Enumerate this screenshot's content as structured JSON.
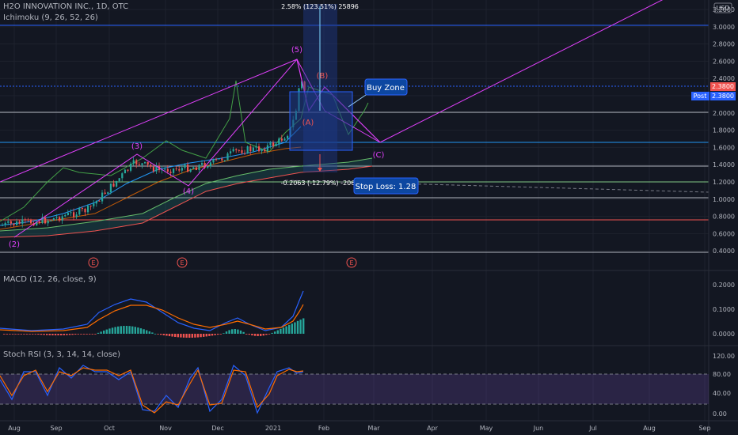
{
  "header": {
    "symbol": "H2O INNOVATION INC., 1D, OTC",
    "indicator": "Ichimoku (9, 26, 52, 26)",
    "currency": "USD"
  },
  "macd_title": "MACD (12, 26, close, 9)",
  "stoch_title": "Stoch RSI (3, 3, 14, 14, close)",
  "annotations": {
    "measure_top": "2.58% (123.51%) 25896",
    "measure_bottom": "-0.2063 (-12.79%) -2063",
    "buy_zone": "Buy Zone",
    "stop_loss": "Stop Loss: 1.28",
    "wave_labels": [
      "(2)",
      "(3)",
      "(4)",
      "(5)",
      "(A)",
      "(B)",
      "(C)"
    ],
    "earnings": "E"
  },
  "price_axis": {
    "ticks": [
      "3.2000",
      "3.0000",
      "2.8000",
      "2.6000",
      "2.4000",
      "2.2000",
      "2.0000",
      "1.8000",
      "1.6000",
      "1.4000",
      "1.2000",
      "1.0000",
      "0.8000",
      "0.6000",
      "0.4000"
    ],
    "last_price": "2.3800",
    "post_label": "Post",
    "post_price": "2.3800"
  },
  "macd_axis": {
    "ticks": [
      "0.2000",
      "0.1000",
      "0.0000"
    ]
  },
  "stoch_axis": {
    "ticks": [
      "120.00",
      "80.00",
      "40.00",
      "0.00"
    ]
  },
  "time_axis": {
    "ticks": [
      "Aug",
      "Sep",
      "Oct",
      "Nov",
      "Dec",
      "2021",
      "Feb",
      "Mar",
      "Apr",
      "May",
      "Jun",
      "Jul",
      "Aug",
      "Sep"
    ]
  },
  "colors": {
    "up": "#26a69a",
    "down": "#ef5350",
    "pattern": "#e040fb",
    "blue_box": "#1e3a8a",
    "label_blue": "#0d47a1",
    "macd": "#2962ff",
    "signal": "#ff6d00"
  }
}
